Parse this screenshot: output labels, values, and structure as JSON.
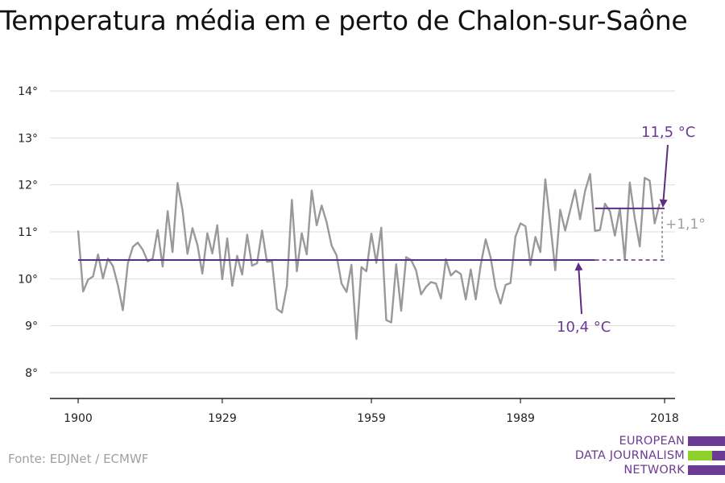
{
  "title": "Temperatura média em e perto de Chalon-sur-Saône",
  "source": "Fonte: EDJNet / ECMWF",
  "logo": {
    "lines": [
      "EUROPEAN",
      "DATA JOURNALISM",
      "NETWORK"
    ],
    "colors": {
      "purple": "#6b3b94",
      "green": "#8fd12b"
    }
  },
  "colors": {
    "series": "#999999",
    "mean_line": "#5c2d82",
    "annotation": "#6b3b94",
    "difference": "#a0a0a0",
    "grid": "#dddddd",
    "axis": "#222222"
  },
  "chart_data": {
    "type": "line",
    "title": "Temperatura média em e perto de Chalon-sur-Saône",
    "xlabel": "",
    "ylabel": "",
    "xlim": [
      1900,
      2018
    ],
    "ylim": [
      8,
      14
    ],
    "x_ticks": [
      1900,
      1929,
      1959,
      1989,
      2018
    ],
    "x_tick_labels": [
      "1900",
      "1929",
      "1959",
      "1989",
      "2018"
    ],
    "y_ticks": [
      8,
      9,
      10,
      11,
      12,
      13,
      14
    ],
    "y_tick_labels": [
      "8°",
      "9°",
      "10°",
      "11°",
      "12°",
      "13°",
      "14°"
    ],
    "grid": true,
    "series": [
      {
        "values": [
          [
            1900,
            11.03
          ],
          [
            1901,
            9.73
          ],
          [
            1902,
            9.98
          ],
          [
            1903,
            10.05
          ],
          [
            1904,
            10.52
          ],
          [
            1905,
            10.01
          ],
          [
            1906,
            10.43
          ],
          [
            1907,
            10.27
          ],
          [
            1908,
            9.86
          ],
          [
            1909,
            9.33
          ],
          [
            1910,
            10.33
          ],
          [
            1911,
            10.68
          ],
          [
            1912,
            10.77
          ],
          [
            1913,
            10.62
          ],
          [
            1914,
            10.37
          ],
          [
            1915,
            10.43
          ],
          [
            1916,
            11.04
          ],
          [
            1917,
            10.26
          ],
          [
            1918,
            11.44
          ],
          [
            1919,
            10.57
          ],
          [
            1920,
            12.04
          ],
          [
            1921,
            11.46
          ],
          [
            1922,
            10.53
          ],
          [
            1923,
            11.08
          ],
          [
            1924,
            10.72
          ],
          [
            1925,
            10.11
          ],
          [
            1926,
            10.97
          ],
          [
            1927,
            10.54
          ],
          [
            1928,
            11.14
          ],
          [
            1929,
            9.99
          ],
          [
            1930,
            10.86
          ],
          [
            1931,
            9.85
          ],
          [
            1932,
            10.49
          ],
          [
            1933,
            10.09
          ],
          [
            1934,
            10.94
          ],
          [
            1935,
            10.28
          ],
          [
            1936,
            10.33
          ],
          [
            1937,
            11.03
          ],
          [
            1938,
            10.36
          ],
          [
            1939,
            10.38
          ],
          [
            1940,
            9.36
          ],
          [
            1941,
            9.28
          ],
          [
            1942,
            9.84
          ],
          [
            1943,
            11.68
          ],
          [
            1944,
            10.16
          ],
          [
            1945,
            10.97
          ],
          [
            1946,
            10.52
          ],
          [
            1947,
            11.88
          ],
          [
            1948,
            11.14
          ],
          [
            1949,
            11.56
          ],
          [
            1950,
            11.2
          ],
          [
            1951,
            10.71
          ],
          [
            1952,
            10.5
          ],
          [
            1953,
            9.9
          ],
          [
            1954,
            9.72
          ],
          [
            1955,
            10.3
          ],
          [
            1956,
            8.72
          ],
          [
            1957,
            10.25
          ],
          [
            1958,
            10.16
          ],
          [
            1959,
            10.96
          ],
          [
            1960,
            10.34
          ],
          [
            1961,
            11.09
          ],
          [
            1962,
            9.12
          ],
          [
            1963,
            9.07
          ],
          [
            1964,
            10.31
          ],
          [
            1965,
            9.32
          ],
          [
            1966,
            10.46
          ],
          [
            1967,
            10.4
          ],
          [
            1968,
            10.18
          ],
          [
            1969,
            9.67
          ],
          [
            1970,
            9.83
          ],
          [
            1971,
            9.93
          ],
          [
            1972,
            9.9
          ],
          [
            1973,
            9.58
          ],
          [
            1974,
            10.42
          ],
          [
            1975,
            10.07
          ],
          [
            1976,
            10.17
          ],
          [
            1977,
            10.1
          ],
          [
            1978,
            9.56
          ],
          [
            1979,
            10.2
          ],
          [
            1980,
            9.56
          ],
          [
            1981,
            10.29
          ],
          [
            1982,
            10.84
          ],
          [
            1983,
            10.45
          ],
          [
            1984,
            9.81
          ],
          [
            1985,
            9.47
          ],
          [
            1986,
            9.87
          ],
          [
            1987,
            9.91
          ],
          [
            1988,
            10.9
          ],
          [
            1989,
            11.18
          ],
          [
            1990,
            11.12
          ],
          [
            1991,
            10.29
          ],
          [
            1992,
            10.89
          ],
          [
            1993,
            10.57
          ],
          [
            1994,
            12.12
          ],
          [
            1995,
            11.18
          ],
          [
            1996,
            10.18
          ],
          [
            1997,
            11.47
          ],
          [
            1998,
            11.03
          ],
          [
            1999,
            11.46
          ],
          [
            2000,
            11.89
          ],
          [
            2001,
            11.27
          ],
          [
            2002,
            11.87
          ],
          [
            2003,
            12.23
          ],
          [
            2004,
            11.02
          ],
          [
            2005,
            11.04
          ],
          [
            2006,
            11.6
          ],
          [
            2007,
            11.44
          ],
          [
            2008,
            10.92
          ],
          [
            2009,
            11.5
          ],
          [
            2010,
            10.41
          ],
          [
            2011,
            12.05
          ],
          [
            2012,
            11.29
          ],
          [
            2013,
            10.69
          ],
          [
            2014,
            12.15
          ],
          [
            2015,
            12.09
          ],
          [
            2016,
            11.18
          ],
          [
            2017,
            11.6
          ]
        ]
      }
    ],
    "reference_lines": [
      {
        "label": "10,4 °C",
        "value": 10.4,
        "x_start": 1900,
        "x_end": 2004,
        "dashed_until": 2018
      },
      {
        "label": "11,5 °C",
        "value": 11.5,
        "x_start": 2004,
        "x_end": 2018
      }
    ],
    "difference_label": "+1,1°"
  }
}
